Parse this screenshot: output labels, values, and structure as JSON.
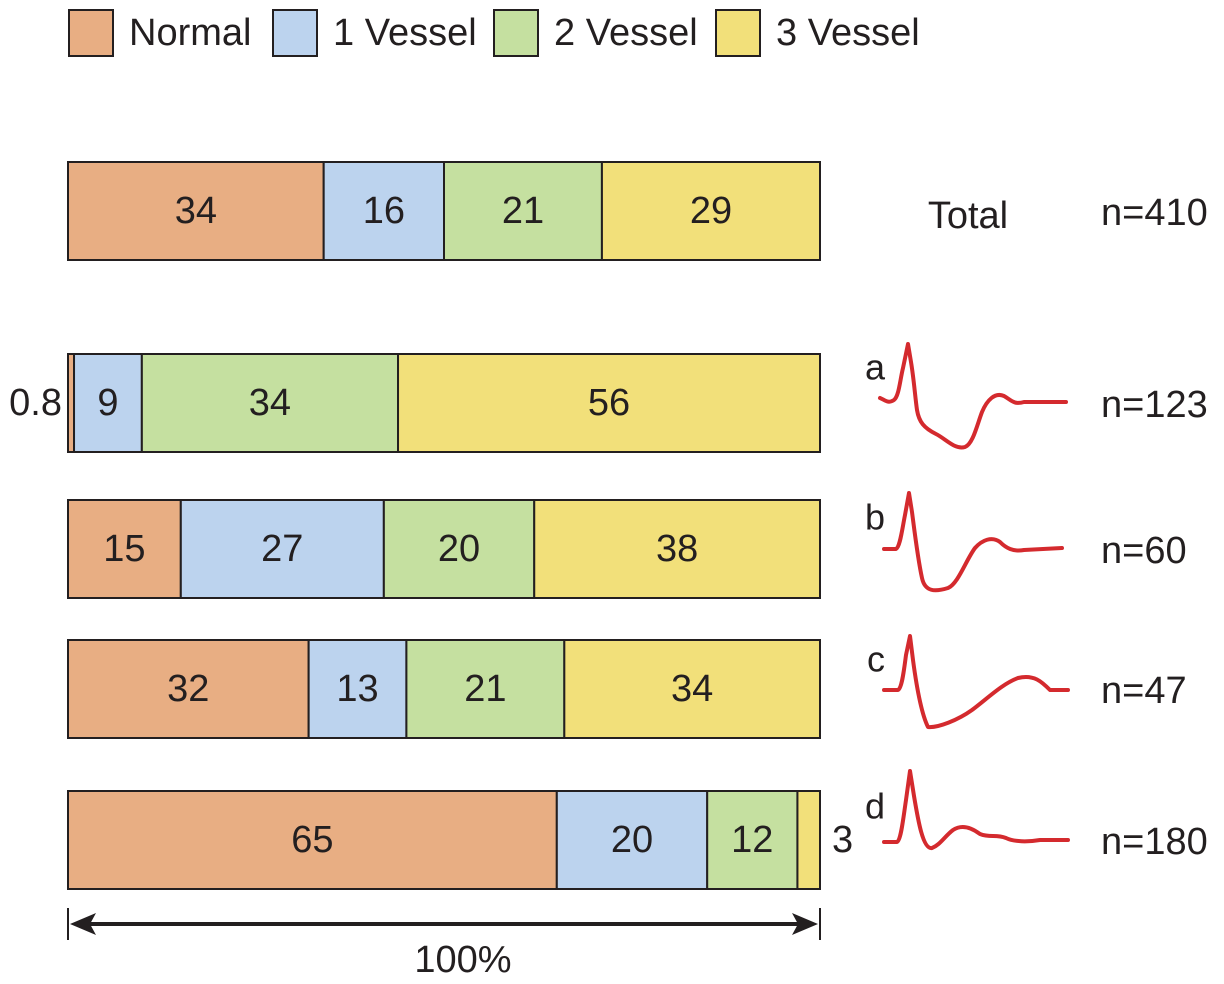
{
  "colors": {
    "Normal": "#e8ae83",
    "1 Vessel": "#bcd3ee",
    "2 Vessel": "#c5e0a0",
    "3 Vessel": "#f2e07a",
    "stroke": "#231f20",
    "ecg": "#d42a2e"
  },
  "chart_data": {
    "type": "bar",
    "stacked": true,
    "orientation": "horizontal",
    "legend_position": "top-left",
    "legend": [
      "Normal",
      "1 Vessel",
      "2 Vessel",
      "3 Vessel"
    ],
    "categories": [
      "Total",
      "a",
      "b",
      "c",
      "d"
    ],
    "n_labels": [
      "n=410",
      "n=123",
      "n=60",
      "n=47",
      "n=180"
    ],
    "series": [
      {
        "name": "Normal",
        "values": [
          34,
          0.8,
          15,
          32,
          65
        ]
      },
      {
        "name": "1 Vessel",
        "values": [
          16,
          9,
          27,
          13,
          20
        ]
      },
      {
        "name": "2 Vessel",
        "values": [
          21,
          34,
          20,
          21,
          12
        ]
      },
      {
        "name": "3 Vessel",
        "values": [
          29,
          56,
          38,
          34,
          3
        ]
      }
    ],
    "value_labels": [
      [
        "34",
        "16",
        "21",
        "29"
      ],
      [
        "0.8",
        "9",
        "34",
        "56"
      ],
      [
        "15",
        "27",
        "20",
        "38"
      ],
      [
        "32",
        "13",
        "21",
        "34"
      ],
      [
        "65",
        "20",
        "12",
        "3"
      ]
    ],
    "ecg_waveforms": [
      "a",
      "b",
      "c",
      "d"
    ],
    "scale_label": "100%"
  }
}
